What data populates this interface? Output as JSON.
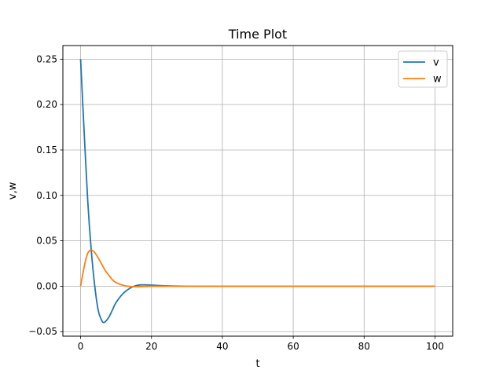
{
  "chart_data": {
    "type": "line",
    "title": "Time Plot",
    "xlabel": "t",
    "ylabel": "v,w",
    "xlim": [
      -5,
      105
    ],
    "ylim": [
      -0.055,
      0.265
    ],
    "x_ticks": [
      0,
      20,
      40,
      60,
      80,
      100
    ],
    "x_tick_labels": [
      "0",
      "20",
      "40",
      "60",
      "80",
      "100"
    ],
    "y_ticks": [
      -0.05,
      0.0,
      0.05,
      0.1,
      0.15,
      0.2,
      0.25
    ],
    "y_tick_labels": [
      "−0.05",
      "0.00",
      "0.05",
      "0.10",
      "0.15",
      "0.20",
      "0.25"
    ],
    "grid": true,
    "legend_position": "top-right",
    "series": [
      {
        "name": "v",
        "color": "#1f77b4",
        "x": [
          0,
          1,
          2,
          3,
          4,
          5,
          6,
          6.5,
          7,
          8,
          9,
          10,
          12,
          14,
          16,
          18,
          20,
          22,
          25,
          30,
          40,
          60,
          80,
          100
        ],
        "y": [
          0.25,
          0.17,
          0.095,
          0.04,
          0.0,
          -0.027,
          -0.038,
          -0.04,
          -0.039,
          -0.034,
          -0.026,
          -0.018,
          -0.008,
          -0.002,
          0.001,
          0.0015,
          0.0012,
          0.0008,
          0.0003,
          0.0,
          0.0,
          0.0,
          0.0,
          0.0
        ]
      },
      {
        "name": "w",
        "color": "#ff7f0e",
        "x": [
          0,
          0.5,
          1,
          1.5,
          2,
          2.5,
          3,
          3.5,
          4,
          5,
          6,
          7,
          8,
          9,
          10,
          12,
          14,
          16,
          18,
          20,
          25,
          30,
          40,
          60,
          80,
          100
        ],
        "y": [
          0.0,
          0.011,
          0.021,
          0.03,
          0.036,
          0.039,
          0.04,
          0.039,
          0.037,
          0.031,
          0.024,
          0.017,
          0.012,
          0.007,
          0.004,
          0.001,
          -0.0003,
          -0.0005,
          -0.0003,
          -0.0001,
          0.0,
          0.0,
          0.0,
          0.0,
          0.0,
          0.0
        ]
      }
    ]
  }
}
